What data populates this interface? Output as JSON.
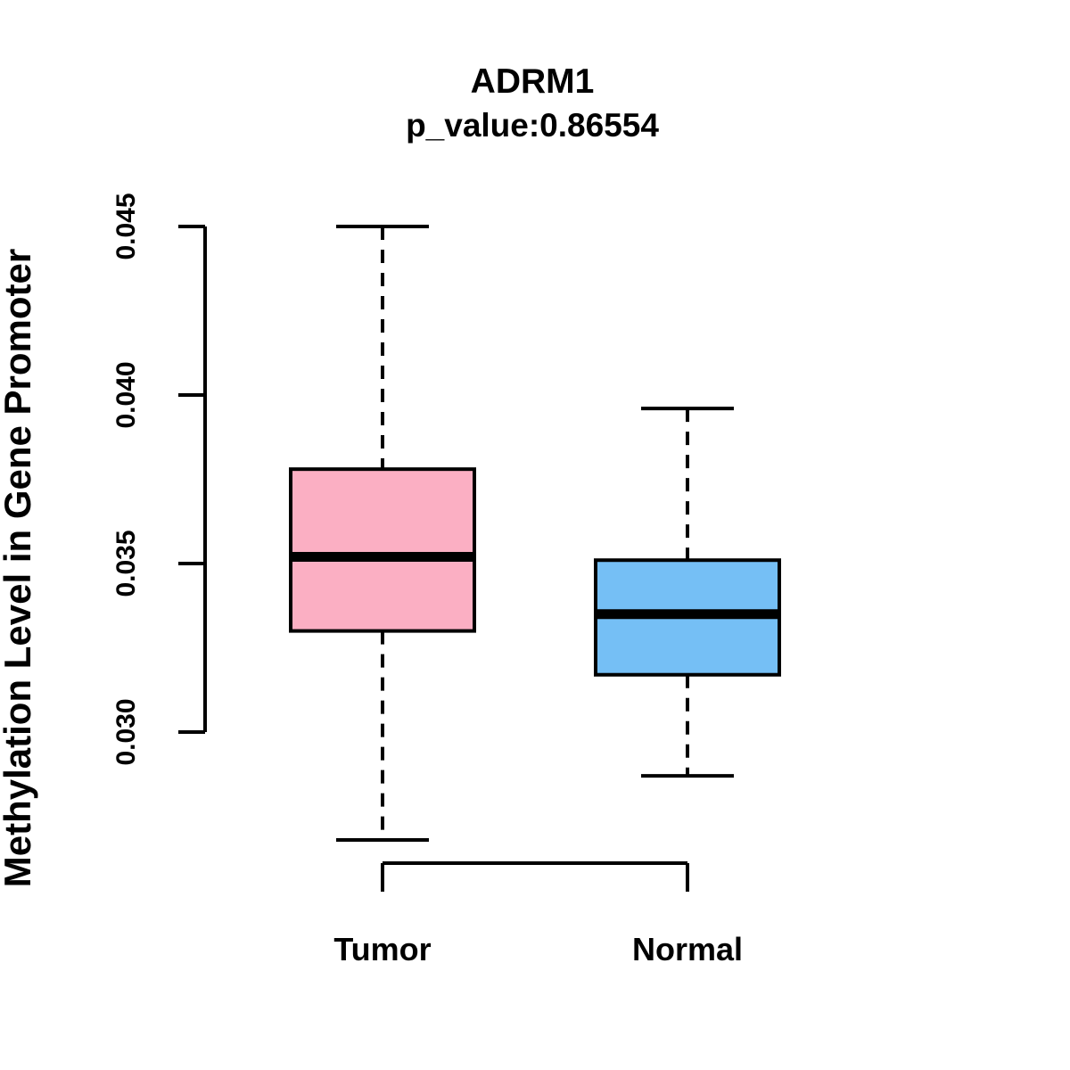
{
  "chart_data": {
    "type": "boxplot",
    "title": "ADRM1",
    "subtitle": "p_value:0.86554",
    "ylabel": "Methylation Level in Gene Promoter",
    "xlabel": "",
    "categories": [
      "Tumor",
      "Normal"
    ],
    "series": [
      {
        "name": "Tumor",
        "color": "#FBAFC3",
        "min": 0.0268,
        "q1": 0.033,
        "median": 0.0352,
        "q3": 0.0378,
        "max": 0.045
      },
      {
        "name": "Normal",
        "color": "#75BFF5",
        "min": 0.0287,
        "q1": 0.0317,
        "median": 0.0335,
        "q3": 0.0351,
        "max": 0.0396
      }
    ],
    "yticks": [
      {
        "value": 0.03,
        "label": "0.030"
      },
      {
        "value": 0.035,
        "label": "0.035"
      },
      {
        "value": 0.04,
        "label": "0.040"
      },
      {
        "value": 0.045,
        "label": "0.045"
      }
    ],
    "ylim": [
      0.026,
      0.046
    ],
    "grid": false,
    "legend": "none",
    "line_color": "#000000",
    "background_color": "#FFFFFF"
  }
}
